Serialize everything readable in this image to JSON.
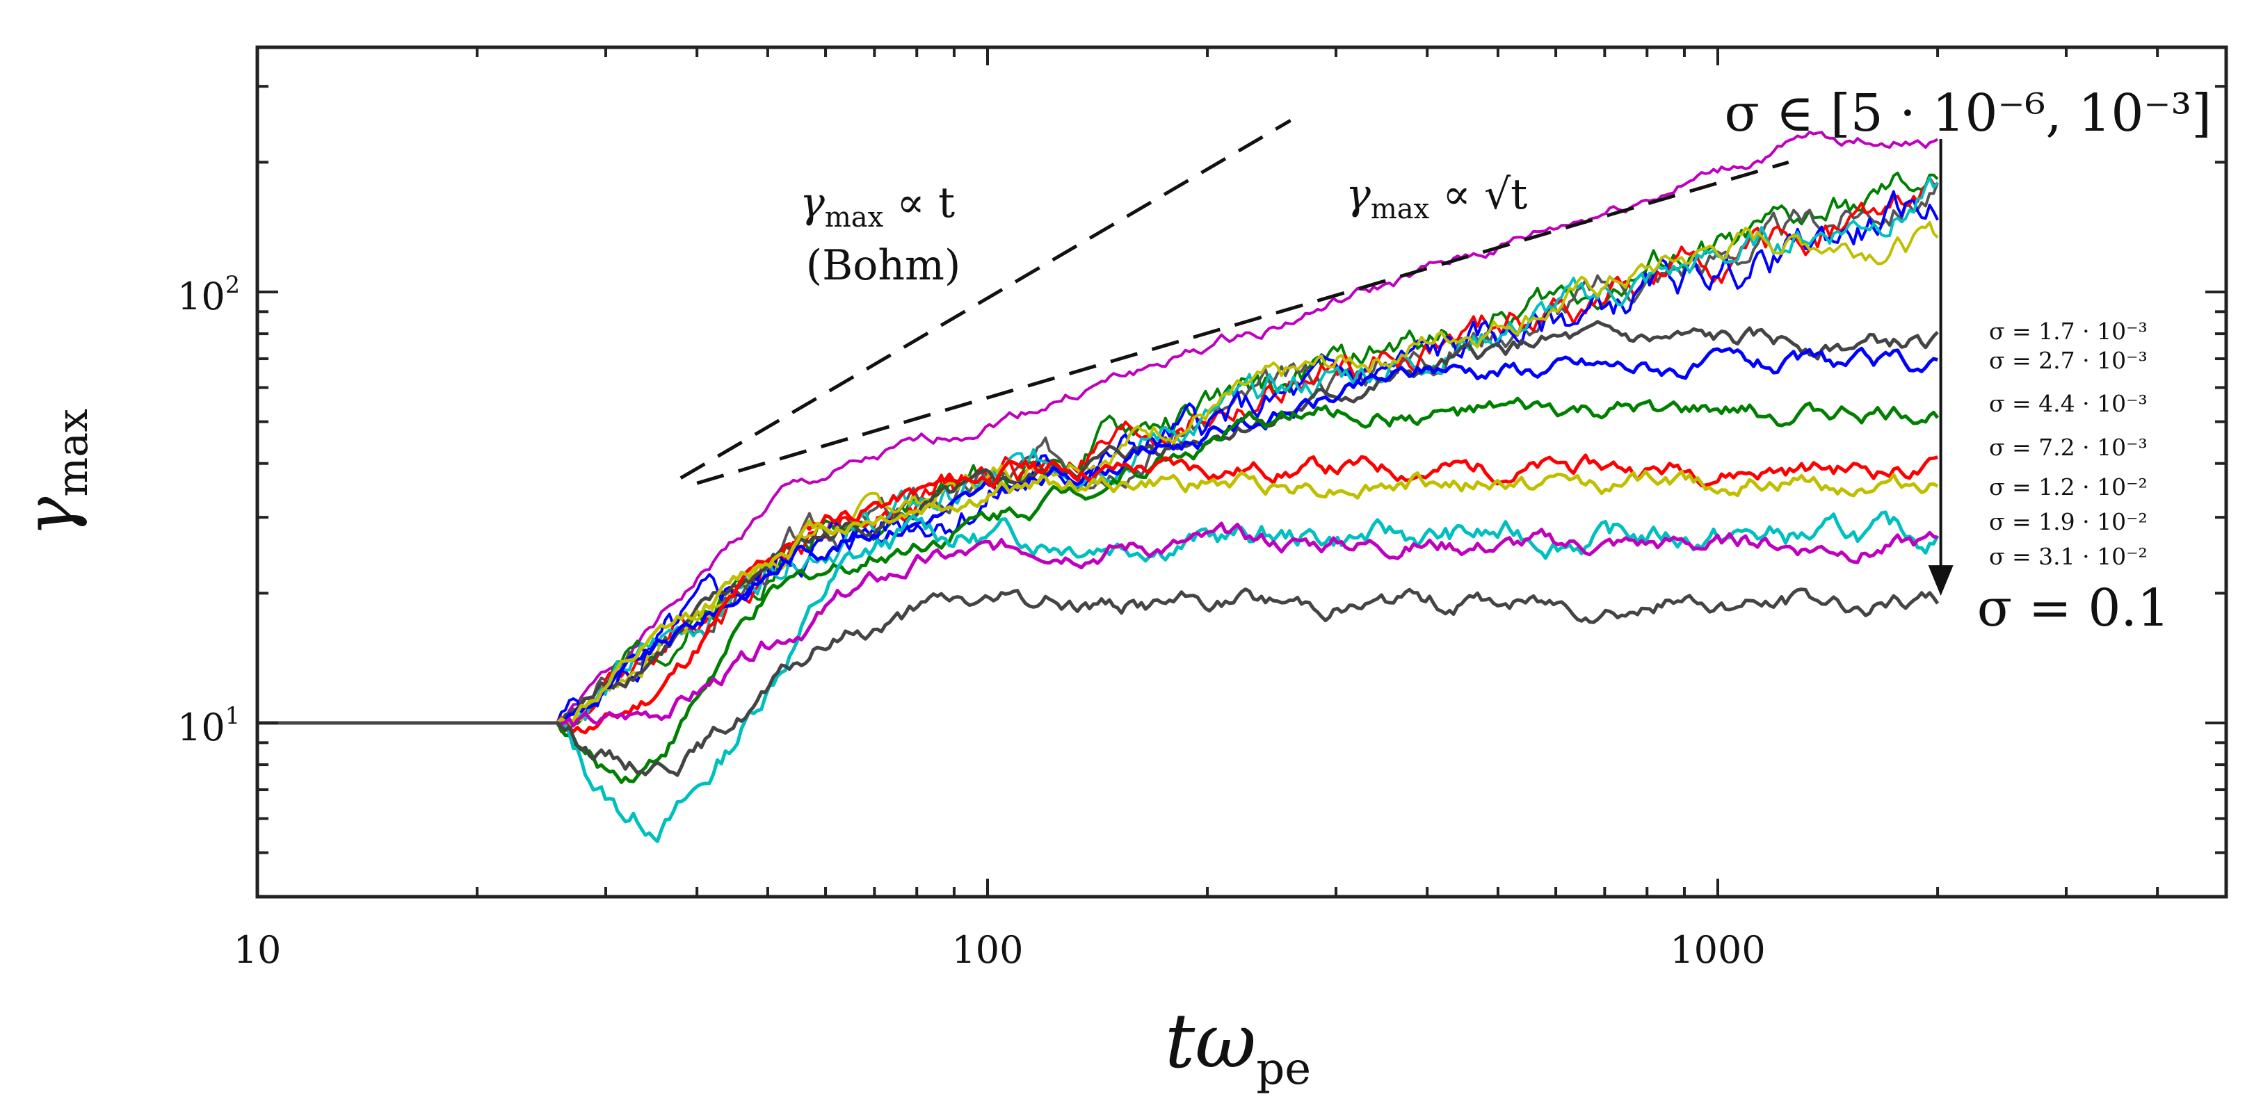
{
  "chart_data": {
    "type": "line",
    "xscale": "log",
    "yscale": "log",
    "xlim": [
      10,
      5500
    ],
    "ylim": [
      4.2,
      400
    ],
    "xticks": [
      10,
      20,
      30,
      40,
      50,
      60,
      70,
      80,
      90,
      100,
      200,
      300,
      400,
      500,
      600,
      700,
      800,
      900,
      1000,
      2000,
      3000,
      4000,
      5000
    ],
    "xtick_labels": [
      "10",
      "100",
      "1000"
    ],
    "yticks": [
      5,
      6,
      7,
      8,
      9,
      10,
      20,
      30,
      40,
      50,
      60,
      70,
      80,
      90,
      100,
      200,
      300
    ],
    "ytick_labels": [
      {
        "base": "10",
        "exp": "1"
      },
      {
        "base": "10",
        "exp": "2"
      }
    ],
    "xlabel": {
      "main": "tω",
      "sub": "pe"
    },
    "ylabel": {
      "main": "γ",
      "sub": "max"
    },
    "annotations": {
      "bohm_line": {
        "label_main": "γ",
        "label_sub": "max",
        "label_rest": " ∝ t",
        "label_line2": "(Bohm)",
        "x": [
          38,
          260
        ],
        "y": [
          37,
          250
        ]
      },
      "sqrt_line": {
        "label_main": "γ",
        "label_sub": "max",
        "label_rest": " ∝ √t",
        "x": [
          40,
          1250
        ],
        "y": [
          36,
          200
        ]
      },
      "sigma_range": "σ ∈ [5 · 10⁻⁶, 10⁻³]",
      "sigma_final": "σ = 0.1",
      "arrow": {
        "x": 2020,
        "y_from": 245,
        "y_to": 19
      }
    },
    "series": [
      {
        "name": "σ ∈ [5·10⁻⁶, 10⁻³] (a)",
        "color": "#bf00bf",
        "label": "",
        "t_start": 26,
        "t_rise": 52,
        "y_rise": 34,
        "t_plat": 1350,
        "y_plat": 225,
        "dip": 0,
        "mode": "sqrt",
        "noise": 0.02,
        "width": 4,
        "seed": 1
      },
      {
        "name": "σ ∈ [5·10⁻⁶, 10⁻³] (b)",
        "color": "#008000",
        "label": "",
        "t_start": 26,
        "t_rise": 55,
        "y_rise": 27,
        "t_plat": 2000,
        "y_plat": 180,
        "dip": 0,
        "mode": "sqrt",
        "noise": 0.05,
        "width": 4,
        "seed": 2
      },
      {
        "name": "σ ∈ [5·10⁻⁶, 10⁻³] (c)",
        "color": "#555555",
        "label": "",
        "t_start": 26,
        "t_rise": 55,
        "y_rise": 26,
        "t_plat": 2000,
        "y_plat": 175,
        "dip": 0,
        "mode": "sqrt",
        "noise": 0.05,
        "width": 4,
        "seed": 3
      },
      {
        "name": "σ ∈ [5·10⁻⁶, 10⁻³] (d)",
        "color": "#ff0000",
        "label": "",
        "t_start": 26,
        "t_rise": 55,
        "y_rise": 27,
        "t_plat": 2000,
        "y_plat": 165,
        "dip": 0,
        "mode": "sqrt",
        "noise": 0.05,
        "width": 4,
        "seed": 4
      },
      {
        "name": "σ ∈ [5·10⁻⁶, 10⁻³] (e)",
        "color": "#0000ff",
        "label": "",
        "t_start": 26,
        "t_rise": 55,
        "y_rise": 25,
        "t_plat": 2000,
        "y_plat": 158,
        "dip": 0,
        "mode": "sqrt",
        "noise": 0.06,
        "width": 4,
        "seed": 5
      },
      {
        "name": "σ ∈ [5·10⁻⁶, 10⁻³] (f)",
        "color": "#00bfbf",
        "label": "",
        "t_start": 26,
        "t_rise": 55,
        "y_rise": 26,
        "t_plat": 2000,
        "y_plat": 170,
        "dip": 0,
        "mode": "sqrt",
        "noise": 0.05,
        "width": 4,
        "seed": 6
      },
      {
        "name": "σ ∈ [5·10⁻⁶, 10⁻³] (g)",
        "color": "#bfbf00",
        "label": "",
        "t_start": 26,
        "t_rise": 55,
        "y_rise": 27,
        "t_plat": 1100,
        "y_plat": 132,
        "dip": 0,
        "mode": "sqrt",
        "noise": 0.04,
        "width": 4,
        "seed": 7
      },
      {
        "name": "σ = 1.7·10⁻³",
        "color": "#444444",
        "label": "σ = 1.7 · 10⁻³",
        "t_start": 26,
        "t_rise": 55,
        "y_rise": 26,
        "t_plat": 560,
        "y_plat": 76,
        "dip": 0,
        "mode": "flat",
        "noise": 0.03,
        "width": 5,
        "seed": 8
      },
      {
        "name": "σ = 2.7·10⁻³",
        "color": "#0000ff",
        "label": "σ = 2.7 · 10⁻³",
        "t_start": 26,
        "t_rise": 55,
        "y_rise": 25,
        "t_plat": 420,
        "y_plat": 67,
        "dip": 0,
        "mode": "flat",
        "noise": 0.03,
        "width": 5,
        "seed": 9
      },
      {
        "name": "σ = 4.4·10⁻³",
        "color": "#008000",
        "label": "σ = 4.4 · 10⁻³",
        "t_start": 26,
        "t_rise": 58,
        "y_rise": 22,
        "t_plat": 260,
        "y_plat": 52,
        "dip": 6.3,
        "mode": "flat",
        "noise": 0.03,
        "width": 5,
        "seed": 10
      },
      {
        "name": "σ = 7.2·10⁻³",
        "color": "#ff0000",
        "label": "σ = 7.2 · 10⁻³",
        "t_start": 26,
        "t_rise": 60,
        "y_rise": 30,
        "t_plat": 110,
        "y_plat": 39,
        "dip": 8.0,
        "mode": "flat",
        "noise": 0.03,
        "width": 5,
        "seed": 11
      },
      {
        "name": "σ = 1.2·10⁻²",
        "color": "#bfbf00",
        "label": "σ = 1.2 · 10⁻²",
        "t_start": 26,
        "t_rise": 56,
        "y_rise": 28,
        "t_plat": 120,
        "y_plat": 36,
        "dip": 0,
        "mode": "flat",
        "noise": 0.03,
        "width": 5,
        "seed": 12
      },
      {
        "name": "σ = 1.9·10⁻²",
        "color": "#00bfbf",
        "label": "σ = 1.9 · 10⁻²",
        "t_start": 26,
        "t_rise": 80,
        "y_rise": 28,
        "t_plat": 95,
        "y_plat": 27,
        "dip": 4.6,
        "mode": "flat",
        "noise": 0.04,
        "width": 5,
        "seed": 13
      },
      {
        "name": "σ = 3.1·10⁻²",
        "color": "#bf00bf",
        "label": "σ = 3.1 · 10⁻²",
        "t_start": 26,
        "t_rise": 80,
        "y_rise": 23,
        "t_plat": 120,
        "y_plat": 26,
        "dip": 8.5,
        "mode": "flat",
        "noise": 0.03,
        "width": 5,
        "seed": 14
      },
      {
        "name": "σ = 0.1",
        "color": "#444444",
        "label": "",
        "t_start": 26,
        "t_rise": 80,
        "y_rise": 18,
        "t_plat": 90,
        "y_plat": 19,
        "dip": 7.0,
        "mode": "flat",
        "noise": 0.03,
        "width": 5,
        "seed": 15
      }
    ]
  }
}
